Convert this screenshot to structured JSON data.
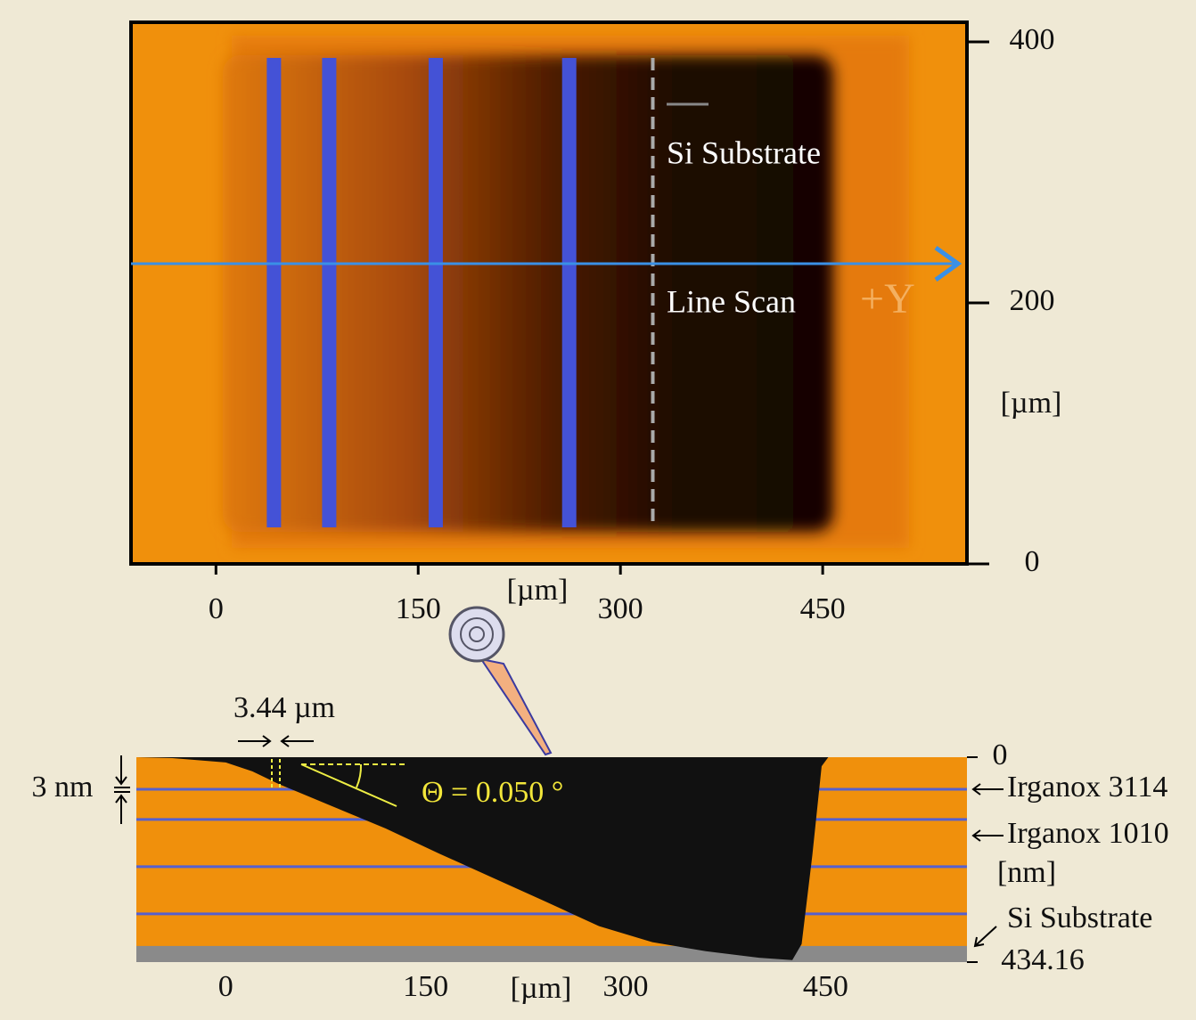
{
  "chart_data": [
    {
      "type": "image",
      "x_label": "[µm]",
      "y_label": "[µm]",
      "xlim": [
        -63,
        557
      ],
      "ylim": [
        0,
        415
      ],
      "xticks": [
        0,
        150,
        300,
        450
      ],
      "yticks": [
        0,
        200,
        400
      ],
      "bars_x": [
        43,
        84,
        163,
        262
      ],
      "bar_color": "#4452d6",
      "boundary_x": 324,
      "scan_y": 230,
      "scan_color": "#3a90e6",
      "annotations": [
        "Si Substrate",
        "Line Scan",
        "+Y"
      ]
    },
    {
      "type": "area",
      "x_label": "[µm]",
      "y_label": "[nm]",
      "xlim": [
        -67,
        556
      ],
      "ylim": [
        0,
        434.16
      ],
      "xticks": [
        0,
        150,
        300,
        450
      ],
      "yticks": [
        0,
        434.16
      ],
      "x": [
        -67,
        -40,
        0,
        20,
        40,
        80,
        120,
        160,
        200,
        240,
        280,
        320,
        360,
        400,
        425,
        432,
        440,
        447,
        452,
        556
      ],
      "values": [
        0,
        2,
        11,
        30,
        57,
        104,
        151,
        204,
        255,
        306,
        358,
        392,
        411,
        425,
        430,
        396,
        208,
        19,
        0,
        0
      ],
      "color": "#111111",
      "layer_depths": [
        68,
        132,
        232,
        332
      ],
      "line_color": "#5560d0",
      "substrate_depth": 400,
      "substrate_color": "#8a8a8a",
      "layer_labels": [
        "Irganox 3114",
        "Irganox 1010",
        "Si Substrate"
      ],
      "annotations": [
        "3.44 µm",
        "3 nm",
        "Θ =  0.050 °"
      ]
    }
  ]
}
